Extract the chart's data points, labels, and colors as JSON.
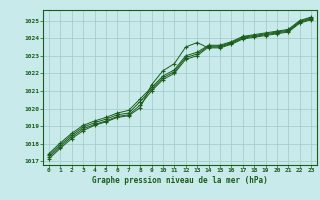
{
  "title": "Graphe pression niveau de la mer (hPa)",
  "bg_color": "#c8eaea",
  "grid_color": "#a0c8c8",
  "line_color": "#1a5c1a",
  "marker_color": "#1a5c1a",
  "xlim": [
    -0.5,
    23.5
  ],
  "ylim": [
    1016.8,
    1025.6
  ],
  "yticks": [
    1017,
    1018,
    1019,
    1020,
    1021,
    1022,
    1023,
    1024,
    1025
  ],
  "xticks": [
    0,
    1,
    2,
    3,
    4,
    5,
    6,
    7,
    8,
    9,
    10,
    11,
    12,
    13,
    14,
    15,
    16,
    17,
    18,
    19,
    20,
    21,
    22,
    23
  ],
  "series": [
    [
      1017.15,
      1017.75,
      1018.3,
      1018.75,
      1019.05,
      1019.25,
      1019.5,
      1019.6,
      1020.05,
      1021.35,
      1022.15,
      1022.55,
      1023.5,
      1023.75,
      1023.45,
      1023.45,
      1023.65,
      1023.95,
      1024.05,
      1024.15,
      1024.25,
      1024.35,
      1024.85,
      1025.05
    ],
    [
      1017.25,
      1017.85,
      1018.4,
      1018.85,
      1019.1,
      1019.3,
      1019.55,
      1019.65,
      1020.2,
      1021.0,
      1021.65,
      1022.0,
      1022.8,
      1023.0,
      1023.5,
      1023.5,
      1023.7,
      1024.0,
      1024.1,
      1024.2,
      1024.3,
      1024.4,
      1024.9,
      1025.1
    ],
    [
      1017.35,
      1017.95,
      1018.5,
      1018.95,
      1019.2,
      1019.4,
      1019.65,
      1019.75,
      1020.4,
      1021.1,
      1021.75,
      1022.1,
      1022.9,
      1023.1,
      1023.55,
      1023.55,
      1023.75,
      1024.05,
      1024.15,
      1024.25,
      1024.35,
      1024.45,
      1024.95,
      1025.15
    ],
    [
      1017.45,
      1018.05,
      1018.6,
      1019.05,
      1019.3,
      1019.5,
      1019.75,
      1019.9,
      1020.55,
      1021.2,
      1021.85,
      1022.2,
      1023.0,
      1023.2,
      1023.6,
      1023.6,
      1023.8,
      1024.1,
      1024.2,
      1024.3,
      1024.4,
      1024.5,
      1025.0,
      1025.2
    ]
  ]
}
